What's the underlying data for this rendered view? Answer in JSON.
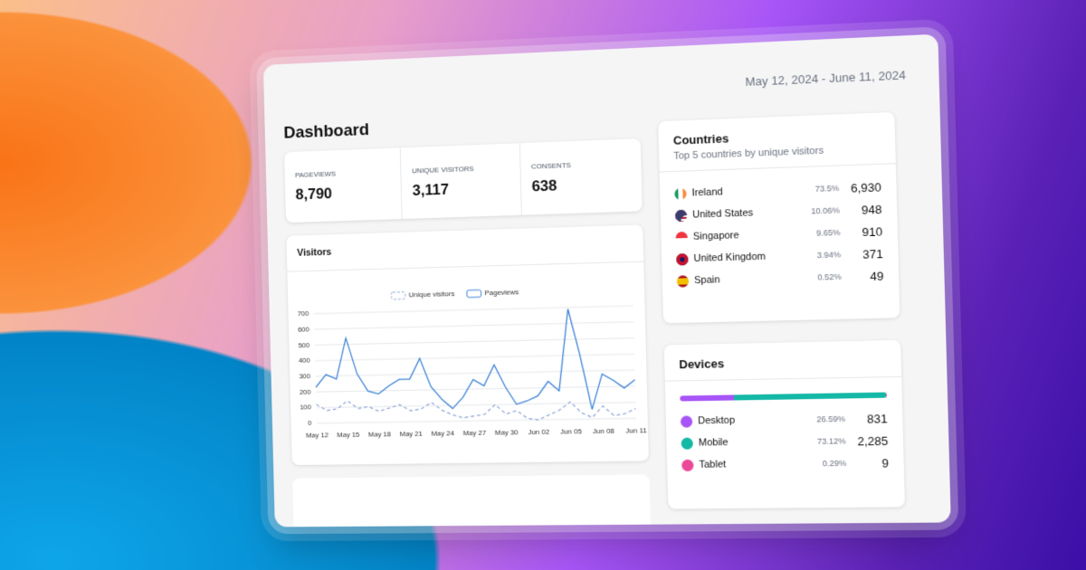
{
  "header": {
    "title": "Dashboard",
    "date_range": "May 12, 2024 - June 11, 2024"
  },
  "stats": [
    {
      "label": "PAGEVIEWS",
      "value": "8,790"
    },
    {
      "label": "UNIQUE VISITORS",
      "value": "3,117"
    },
    {
      "label": "CONSENTS",
      "value": "638"
    }
  ],
  "countries": {
    "title": "Countries",
    "subtitle": "Top 5 countries by unique visitors",
    "rows": [
      {
        "name": "Ireland",
        "share": "73.5%",
        "count": "6,930"
      },
      {
        "name": "United States",
        "share": "10.06%",
        "count": "948"
      },
      {
        "name": "Singapore",
        "share": "9.65%",
        "count": "910"
      },
      {
        "name": "United Kingdom",
        "share": "3.94%",
        "count": "371"
      },
      {
        "name": "Spain",
        "share": "0.52%",
        "count": "49"
      }
    ]
  },
  "devices": {
    "title": "Devices",
    "rows": [
      {
        "name": "Desktop",
        "color": "#a855f7",
        "share": 26.59,
        "share_label": "26.59%",
        "count": "831"
      },
      {
        "name": "Mobile",
        "color": "#14b8a6",
        "share": 73.12,
        "share_label": "73.12%",
        "count": "2,285"
      },
      {
        "name": "Tablet",
        "color": "#ec4899",
        "share": 0.29,
        "share_label": "0.29%",
        "count": "9"
      }
    ]
  },
  "chart_data": {
    "type": "line",
    "title": "Visitors",
    "categories": [
      "May 12",
      null,
      null,
      "May 15",
      null,
      null,
      "May 18",
      null,
      null,
      "May 21",
      null,
      null,
      "May 24",
      null,
      null,
      "May 27",
      null,
      null,
      "May 30",
      null,
      null,
      "Jun 02",
      null,
      null,
      "Jun 05",
      null,
      null,
      "Jun 08",
      null,
      null,
      "Jun 11"
    ],
    "series": [
      {
        "name": "Unique visitors",
        "color": "#93a8d8",
        "line_style": "dashed",
        "values": [
          120,
          80,
          90,
          140,
          90,
          100,
          70,
          90,
          110,
          70,
          80,
          120,
          70,
          40,
          20,
          30,
          40,
          100,
          40,
          60,
          10,
          0,
          30,
          60,
          110,
          40,
          10,
          80,
          20,
          30,
          60
        ]
      },
      {
        "name": "Pageviews",
        "color": "#3b82d6",
        "line_style": "solid",
        "values": [
          230,
          310,
          280,
          540,
          310,
          200,
          180,
          230,
          270,
          270,
          400,
          220,
          140,
          80,
          150,
          260,
          220,
          350,
          210,
          100,
          120,
          150,
          240,
          180,
          690,
          400,
          60,
          280,
          240,
          190,
          240
        ]
      }
    ],
    "ylim": [
      0,
      700
    ],
    "yticks": [
      0,
      100,
      200,
      300,
      400,
      500,
      600,
      700
    ],
    "grid": true
  }
}
